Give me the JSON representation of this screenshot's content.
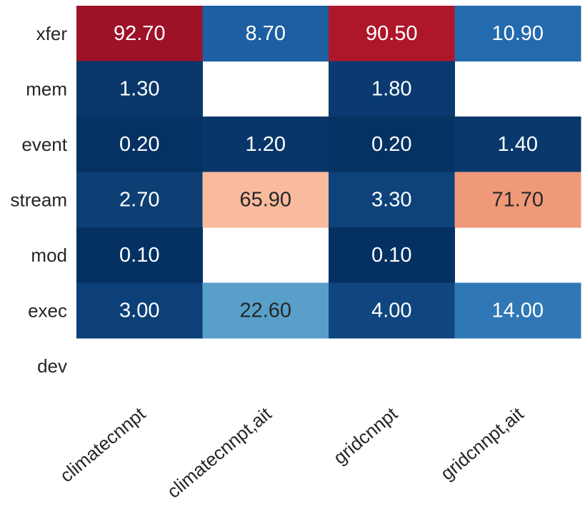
{
  "chart_data": {
    "type": "heatmap",
    "rows": [
      "xfer",
      "mem",
      "event",
      "stream",
      "mod",
      "exec",
      "dev"
    ],
    "columns": [
      "climatecnnpt",
      "climatecnnpt,ait",
      "gridcnnpt",
      "gridcnnpt,ait"
    ],
    "values": [
      [
        92.7,
        8.7,
        90.5,
        10.9
      ],
      [
        1.3,
        null,
        1.8,
        null
      ],
      [
        0.2,
        1.2,
        0.2,
        1.4
      ],
      [
        2.7,
        65.9,
        3.3,
        71.7
      ],
      [
        0.1,
        null,
        0.1,
        null
      ],
      [
        3.0,
        22.6,
        4.0,
        14.0
      ],
      [
        null,
        null,
        null,
        null
      ]
    ],
    "value_format": "0.00",
    "colormap": "RdBu_r",
    "vmin": 0,
    "vmax": 100,
    "colorbar": false,
    "missing_cells": "blank",
    "title": "",
    "xlabel": "",
    "ylabel": "",
    "colors": {
      "cell_text_light": "#ffffff",
      "cell_text_dark": "#262626",
      "axis_text": "#262626"
    }
  }
}
